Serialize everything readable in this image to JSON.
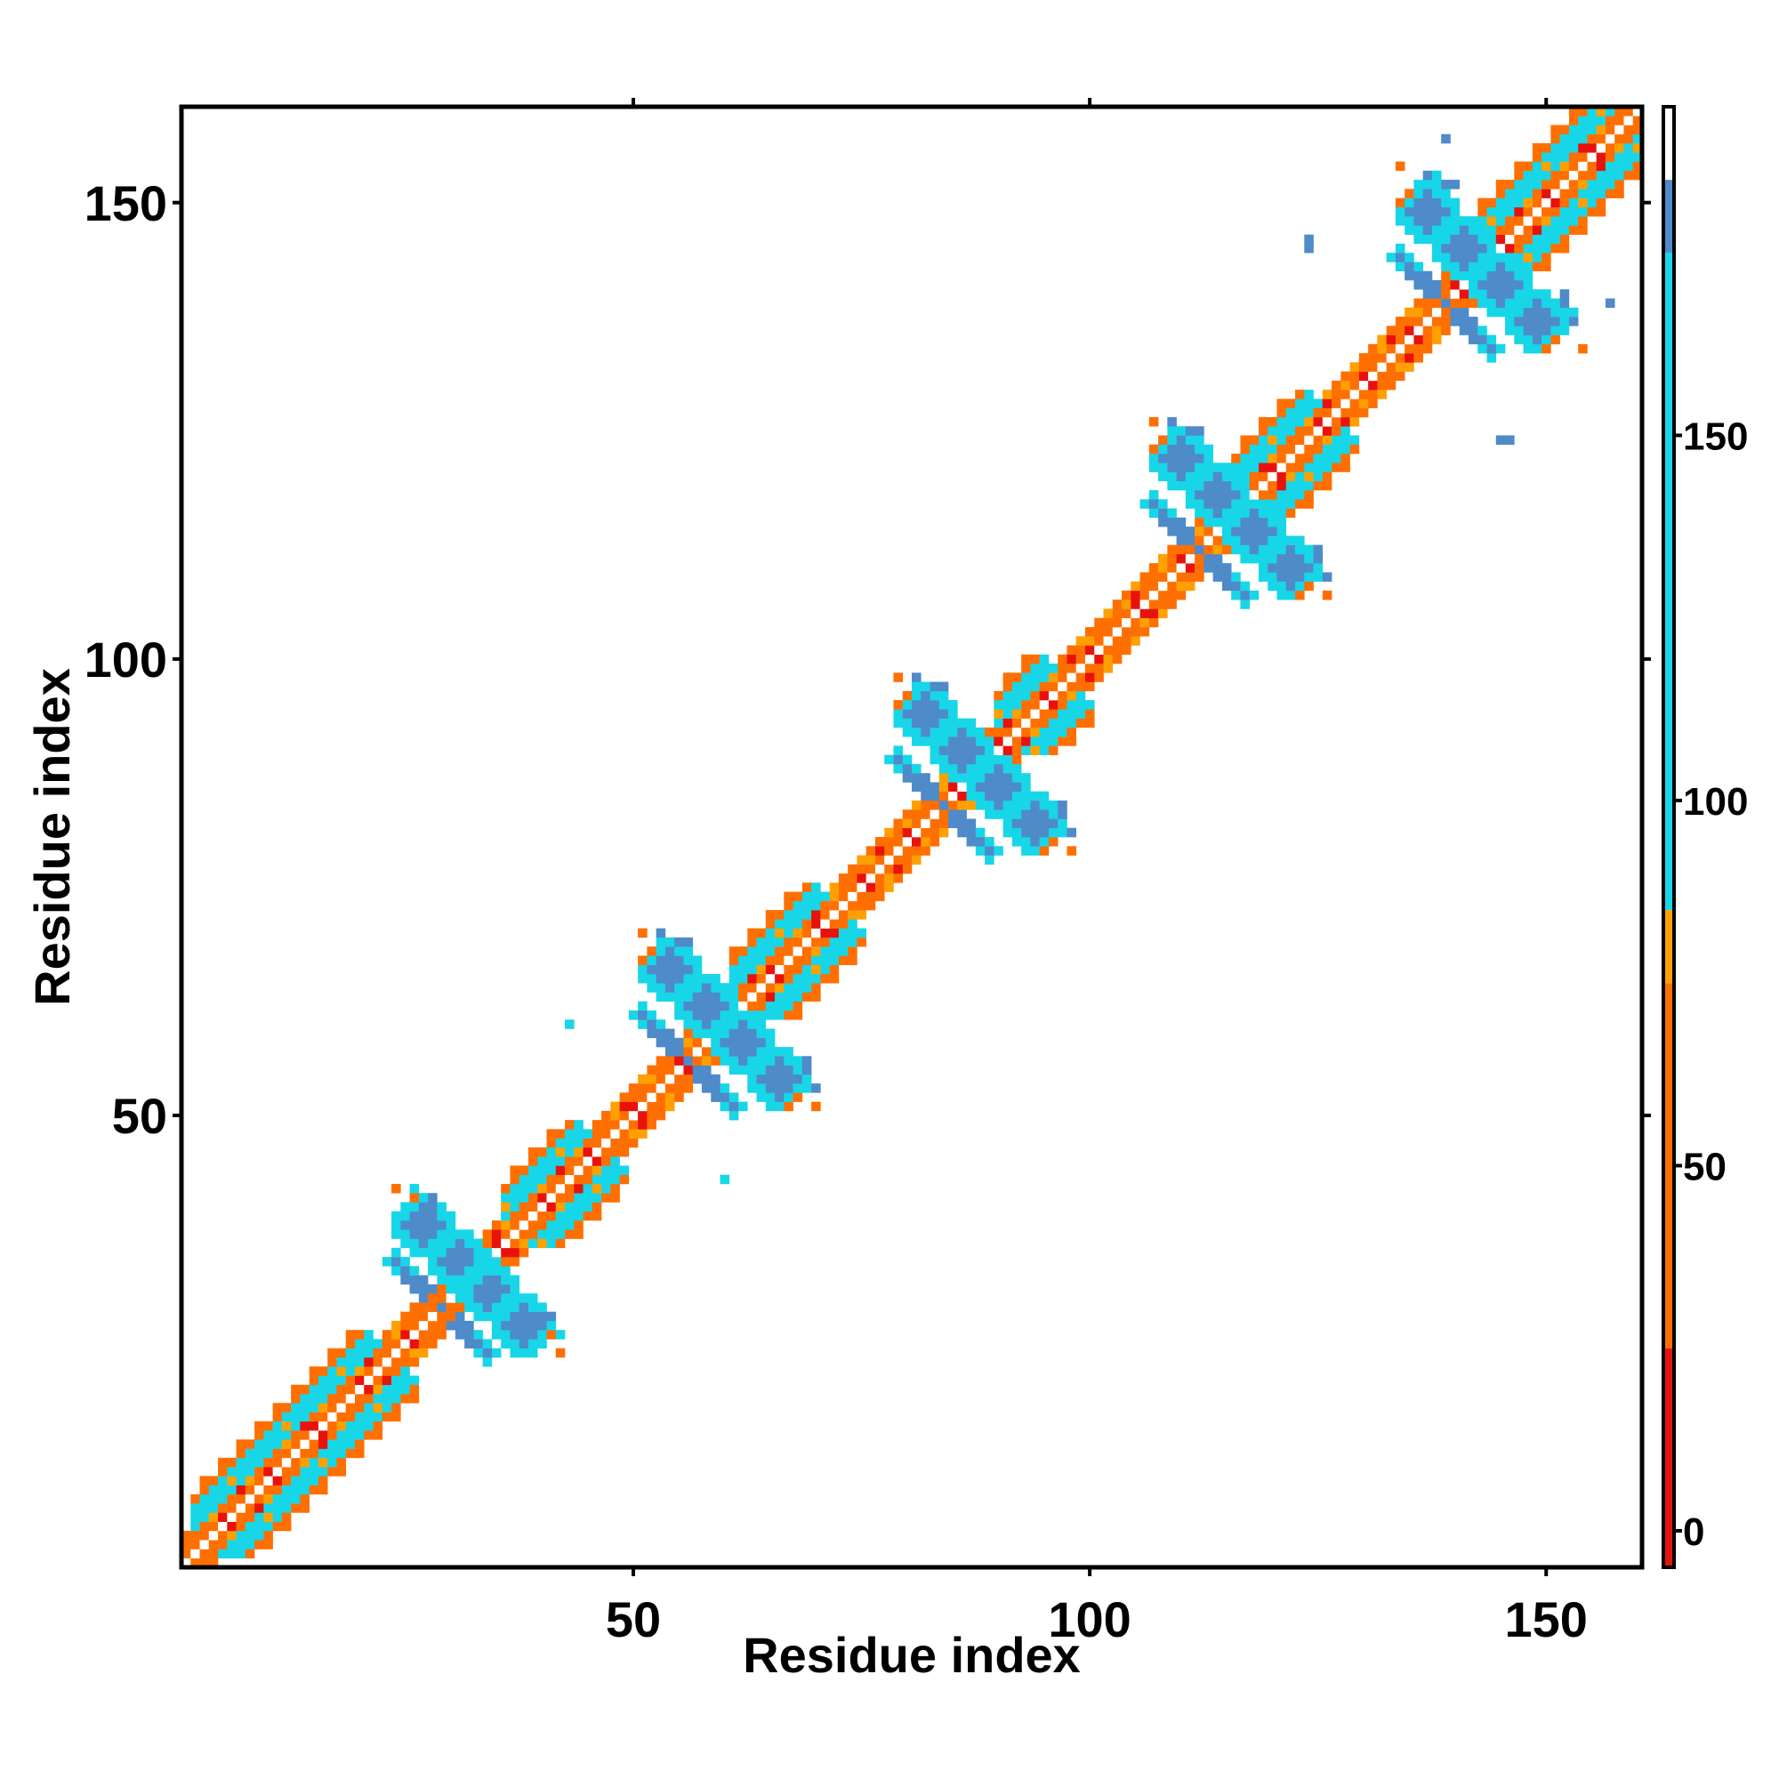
{
  "chart_data": {
    "type": "heatmap",
    "title": "",
    "xlabel": "Residue index",
    "ylabel": "Residue index",
    "xlim": [
      0.5,
      160.5
    ],
    "ylim": [
      0.5,
      160.5
    ],
    "x_ticks": [
      50,
      100,
      150
    ],
    "y_ticks": [
      50,
      100,
      150
    ],
    "colorbar": {
      "ticks": [
        0,
        50,
        100,
        150
      ],
      "range": [
        -5,
        195
      ],
      "bands": [
        {
          "from": -5,
          "to": 25,
          "color": "#e8120c"
        },
        {
          "from": 25,
          "to": 75,
          "color": "#ff6f00"
        },
        {
          "from": 75,
          "to": 85,
          "color": "#ffa000"
        },
        {
          "from": 85,
          "to": 175,
          "color": "#17d6e8"
        },
        {
          "from": 175,
          "to": 185,
          "color": "#4f8ac9"
        },
        {
          "from": 185,
          "to": 195,
          "color": "#ffffff"
        }
      ]
    },
    "matrix_size": 160,
    "symmetric": true,
    "helix_segments": [
      [
        2,
        25
      ],
      [
        36,
        48
      ],
      [
        61,
        74
      ],
      [
        90,
        99
      ],
      [
        116,
        128
      ],
      [
        143,
        160
      ]
    ],
    "crossings": [
      29,
      56,
      84,
      112,
      139
    ],
    "side_blocks": [
      {
        "center": [
          27,
          38
        ],
        "color": "#4f8ac9"
      },
      {
        "center": [
          31,
          34
        ],
        "color": "#4f8ac9"
      },
      {
        "center": [
          54,
          66
        ],
        "color": "#4f8ac9"
      },
      {
        "center": [
          58,
          62
        ],
        "color": "#4f8ac9"
      },
      {
        "center": [
          82,
          94
        ],
        "color": "#4f8ac9"
      },
      {
        "center": [
          86,
          90
        ],
        "color": "#4f8ac9"
      },
      {
        "center": [
          110,
          122
        ],
        "color": "#4f8ac9"
      },
      {
        "center": [
          114,
          118
        ],
        "color": "#4f8ac9"
      },
      {
        "center": [
          137,
          149
        ],
        "color": "#4f8ac9"
      },
      {
        "center": [
          141,
          145
        ],
        "color": "#4f8ac9"
      }
    ],
    "scatter_contacts": [
      {
        "i": 24,
        "j": 42,
        "value": 60
      },
      {
        "i": 26,
        "j": 42,
        "value": 160
      },
      {
        "i": 28,
        "j": 41,
        "value": 180
      },
      {
        "i": 40,
        "j": 28,
        "value": 180
      },
      {
        "i": 41,
        "j": 26,
        "value": 60
      },
      {
        "i": 42,
        "j": 24,
        "value": 60
      },
      {
        "i": 51,
        "j": 70,
        "value": 60
      },
      {
        "i": 53,
        "j": 70,
        "value": 180
      },
      {
        "i": 56,
        "j": 69,
        "value": 180
      },
      {
        "i": 69,
        "j": 55,
        "value": 180
      },
      {
        "i": 68,
        "j": 52,
        "value": 60
      },
      {
        "i": 67,
        "j": 51,
        "value": 60
      },
      {
        "i": 60,
        "j": 43,
        "value": 120
      },
      {
        "i": 30,
        "j": 28,
        "value": 60
      },
      {
        "i": 79,
        "j": 98,
        "value": 60
      },
      {
        "i": 81,
        "j": 98,
        "value": 180
      },
      {
        "i": 84,
        "j": 97,
        "value": 180
      },
      {
        "i": 97,
        "j": 83,
        "value": 180
      },
      {
        "i": 96,
        "j": 80,
        "value": 60
      },
      {
        "i": 95,
        "j": 79,
        "value": 60
      },
      {
        "i": 107,
        "j": 126,
        "value": 60
      },
      {
        "i": 109,
        "j": 126,
        "value": 180
      },
      {
        "i": 112,
        "j": 125,
        "value": 180
      },
      {
        "i": 125,
        "j": 111,
        "value": 180
      },
      {
        "i": 124,
        "j": 108,
        "value": 60
      },
      {
        "i": 123,
        "j": 107,
        "value": 60
      },
      {
        "i": 134,
        "j": 154,
        "value": 60
      },
      {
        "i": 137,
        "j": 153,
        "value": 180
      },
      {
        "i": 140,
        "j": 152,
        "value": 180
      },
      {
        "i": 152,
        "j": 139,
        "value": 180
      },
      {
        "i": 151,
        "j": 135,
        "value": 60
      },
      {
        "i": 150,
        "j": 134,
        "value": 60
      },
      {
        "i": 145,
        "j": 124,
        "value": 180
      },
      {
        "i": 124,
        "j": 146,
        "value": 180
      },
      {
        "i": 139,
        "j": 157,
        "value": 180
      },
      {
        "i": 153,
        "j": 138,
        "value": 120
      }
    ]
  }
}
